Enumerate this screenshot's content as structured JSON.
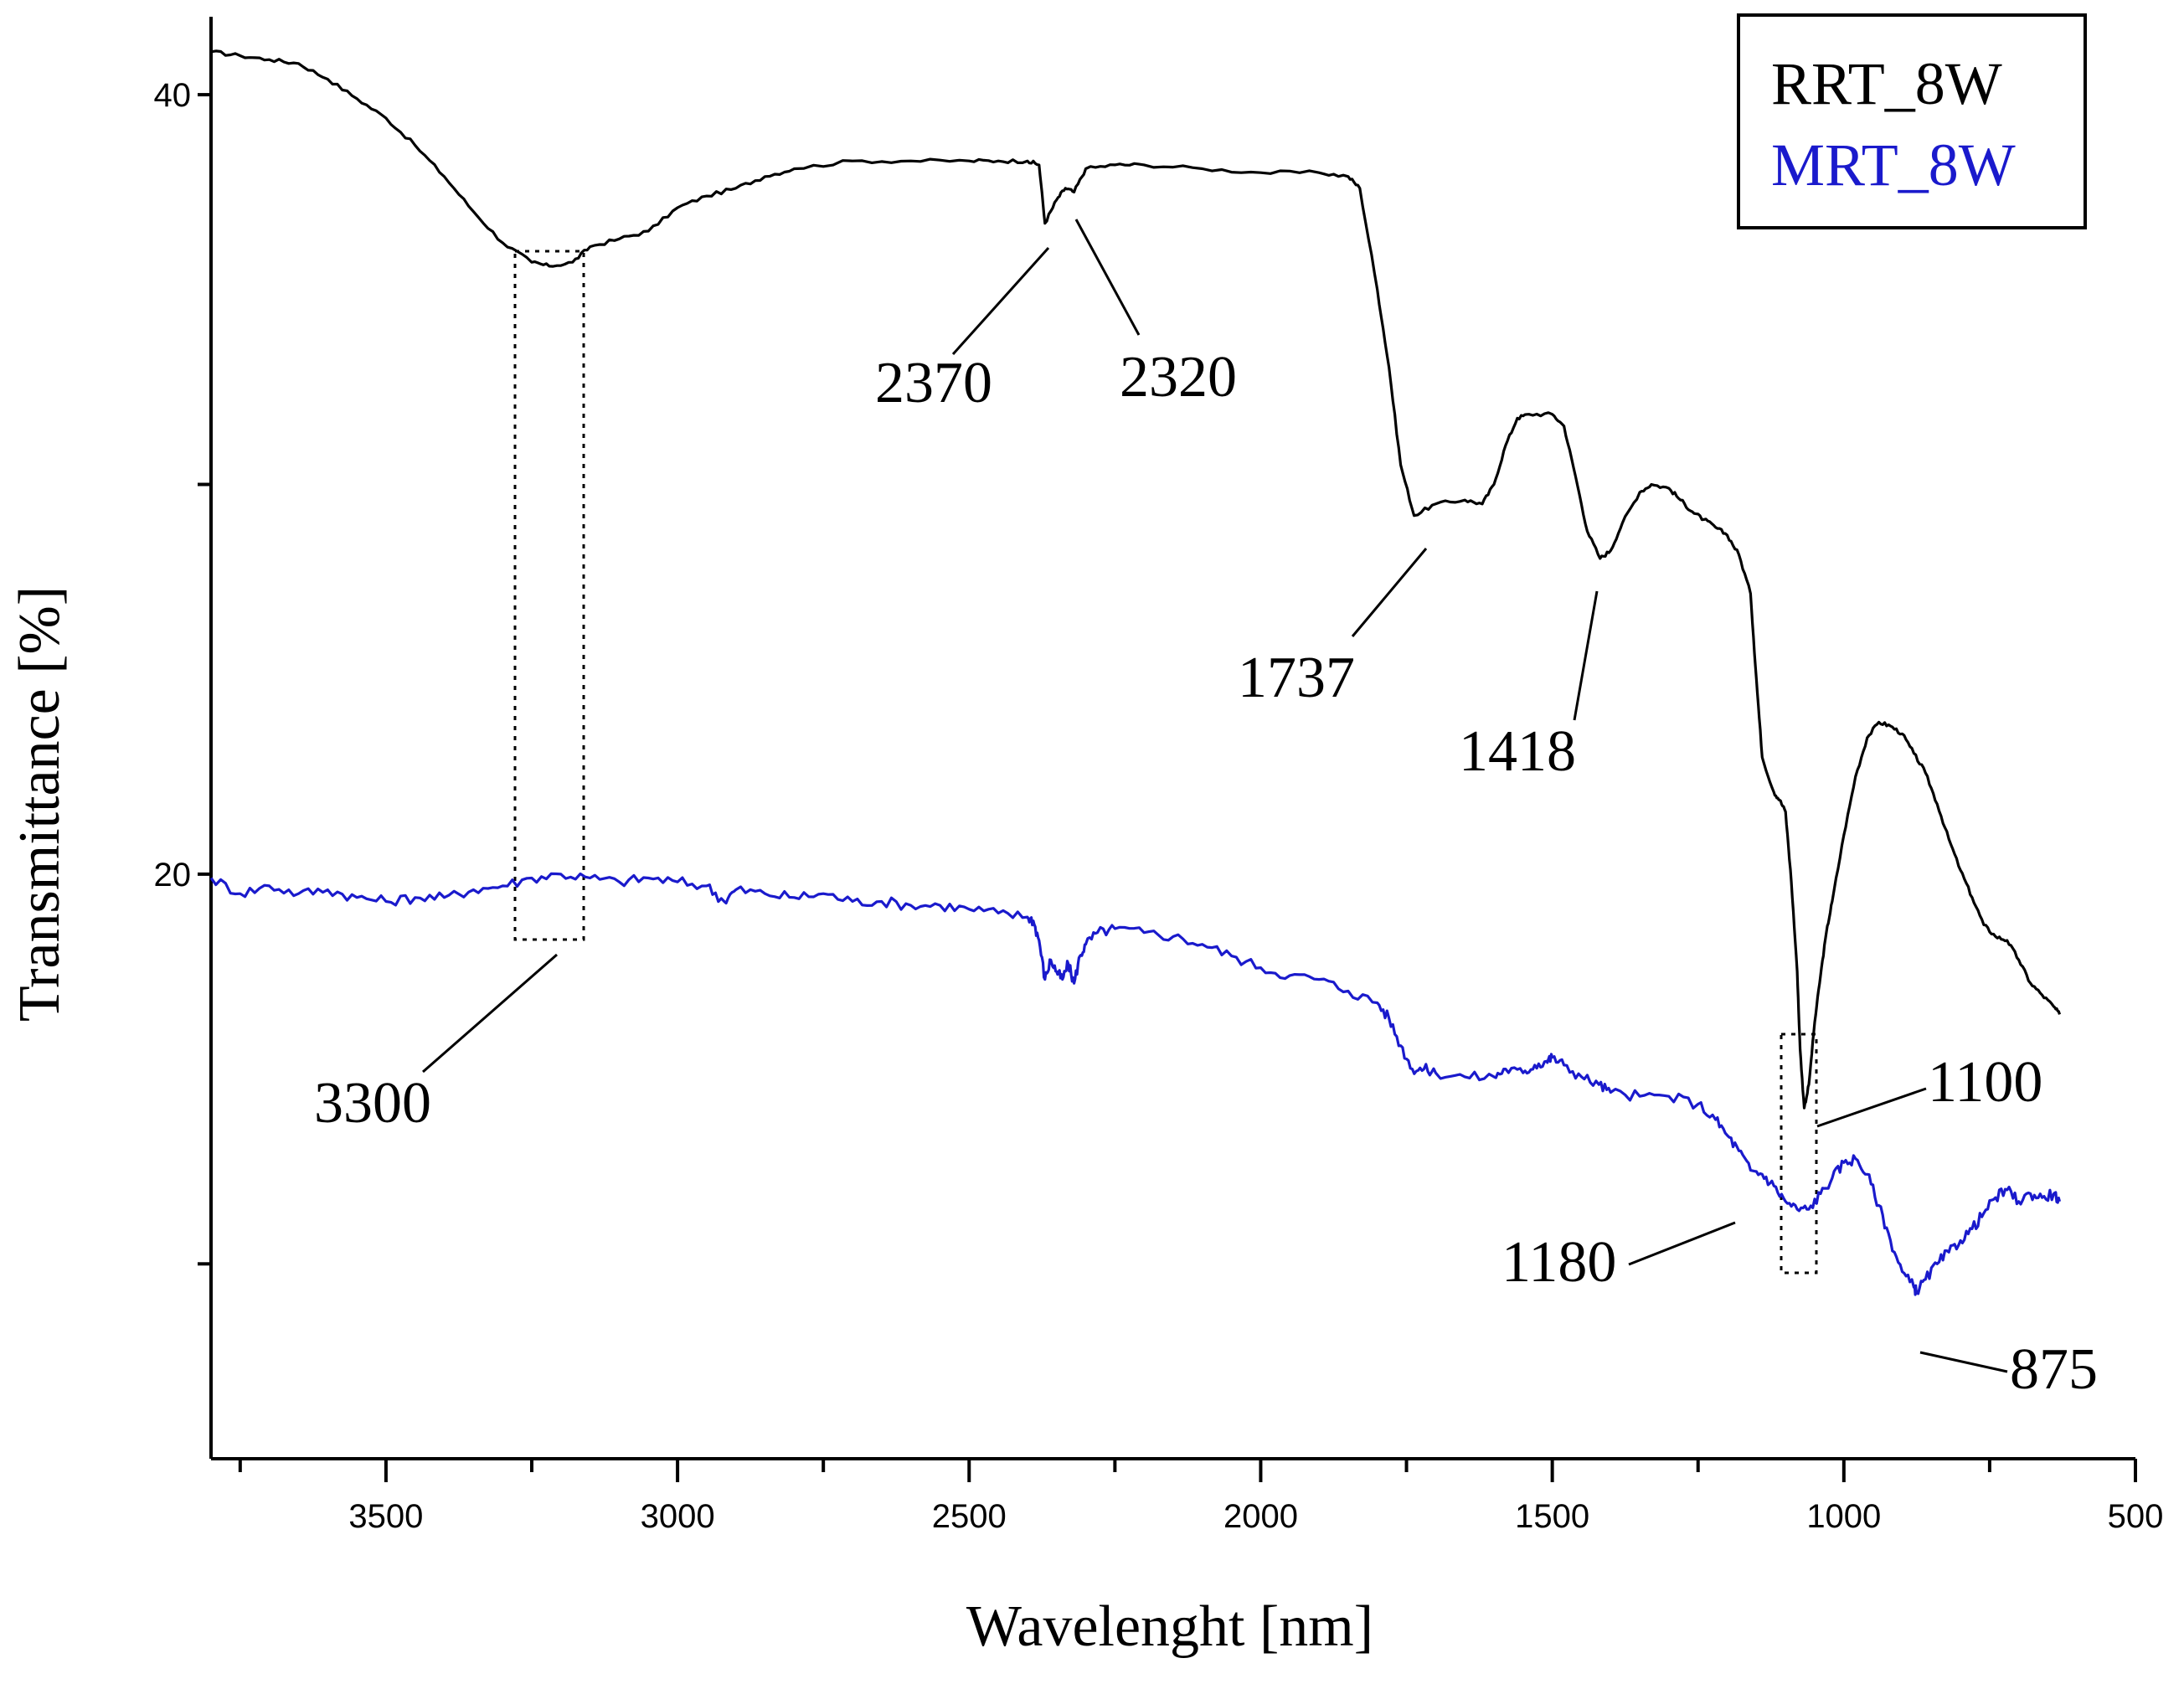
{
  "chart_data": {
    "type": "line",
    "title": "",
    "xlabel": "Wavelenght [nm]",
    "ylabel": "Transmittance [%]",
    "xlim": [
      3800,
      500
    ],
    "ylim": [
      5,
      42
    ],
    "x_ticks": [
      3500,
      3000,
      2500,
      2000,
      1500,
      1000,
      500
    ],
    "y_tick_labels": [
      {
        "value": 40,
        "label": "40"
      },
      {
        "value": 20,
        "label": "20"
      }
    ],
    "y_minor_ticks": [
      30,
      10
    ],
    "legend": {
      "position": "top-right",
      "entries": [
        {
          "label": "RRT_8W",
          "color": "#000000"
        },
        {
          "label": "MRT_8W",
          "color": "#1a1acc"
        }
      ]
    },
    "series": [
      {
        "name": "RRT_8W",
        "color": "#000000",
        "points": [
          [
            3800,
            41.1
          ],
          [
            3750,
            41.0
          ],
          [
            3700,
            40.9
          ],
          [
            3650,
            40.8
          ],
          [
            3600,
            40.4
          ],
          [
            3550,
            39.9
          ],
          [
            3500,
            39.4
          ],
          [
            3450,
            38.7
          ],
          [
            3400,
            37.9
          ],
          [
            3350,
            37.0
          ],
          [
            3300,
            36.2
          ],
          [
            3250,
            35.7
          ],
          [
            3220,
            35.6
          ],
          [
            3180,
            35.7
          ],
          [
            3150,
            36.1
          ],
          [
            3100,
            36.3
          ],
          [
            3050,
            36.5
          ],
          [
            3000,
            37.1
          ],
          [
            2950,
            37.4
          ],
          [
            2900,
            37.6
          ],
          [
            2850,
            37.9
          ],
          [
            2800,
            38.1
          ],
          [
            2700,
            38.3
          ],
          [
            2600,
            38.3
          ],
          [
            2500,
            38.3
          ],
          [
            2450,
            38.3
          ],
          [
            2400,
            38.3
          ],
          [
            2380,
            38.2
          ],
          [
            2370,
            36.7
          ],
          [
            2350,
            37.3
          ],
          [
            2335,
            37.6
          ],
          [
            2320,
            37.5
          ],
          [
            2300,
            38.1
          ],
          [
            2250,
            38.2
          ],
          [
            2200,
            38.2
          ],
          [
            2100,
            38.1
          ],
          [
            2000,
            38.0
          ],
          [
            1900,
            38.0
          ],
          [
            1850,
            37.9
          ],
          [
            1830,
            37.6
          ],
          [
            1800,
            35.0
          ],
          [
            1780,
            33.0
          ],
          [
            1760,
            30.5
          ],
          [
            1737,
            29.2
          ],
          [
            1700,
            29.5
          ],
          [
            1650,
            29.6
          ],
          [
            1620,
            29.5
          ],
          [
            1600,
            30.0
          ],
          [
            1580,
            31.0
          ],
          [
            1560,
            31.7
          ],
          [
            1540,
            31.8
          ],
          [
            1500,
            31.8
          ],
          [
            1480,
            31.5
          ],
          [
            1460,
            30.2
          ],
          [
            1440,
            28.8
          ],
          [
            1418,
            28.1
          ],
          [
            1400,
            28.3
          ],
          [
            1380,
            29.0
          ],
          [
            1350,
            29.8
          ],
          [
            1330,
            30.0
          ],
          [
            1300,
            29.9
          ],
          [
            1280,
            29.6
          ],
          [
            1260,
            29.3
          ],
          [
            1240,
            29.1
          ],
          [
            1220,
            28.9
          ],
          [
            1200,
            28.7
          ],
          [
            1180,
            28.2
          ],
          [
            1160,
            27.2
          ],
          [
            1150,
            25.0
          ],
          [
            1140,
            23.0
          ],
          [
            1120,
            22.1
          ],
          [
            1110,
            21.9
          ],
          [
            1100,
            21.6
          ],
          [
            1090,
            19.8
          ],
          [
            1080,
            17.5
          ],
          [
            1075,
            15.5
          ],
          [
            1068,
            14.0
          ],
          [
            1060,
            14.6
          ],
          [
            1050,
            16.2
          ],
          [
            1040,
            17.4
          ],
          [
            1030,
            18.5
          ],
          [
            1020,
            19.3
          ],
          [
            1000,
            21.0
          ],
          [
            980,
            22.5
          ],
          [
            960,
            23.5
          ],
          [
            940,
            23.9
          ],
          [
            920,
            23.8
          ],
          [
            900,
            23.6
          ],
          [
            880,
            23.1
          ],
          [
            860,
            22.6
          ],
          [
            840,
            21.8
          ],
          [
            820,
            20.9
          ],
          [
            800,
            20.1
          ],
          [
            780,
            19.4
          ],
          [
            760,
            18.7
          ],
          [
            740,
            18.4
          ],
          [
            720,
            18.3
          ],
          [
            700,
            17.8
          ],
          [
            680,
            17.2
          ],
          [
            660,
            16.9
          ],
          [
            640,
            16.6
          ],
          [
            630,
            16.4
          ]
        ]
      },
      {
        "name": "MRT_8W",
        "color": "#1a1acc",
        "points": [
          [
            3800,
            19.9
          ],
          [
            3750,
            19.5
          ],
          [
            3700,
            19.7
          ],
          [
            3650,
            19.5
          ],
          [
            3600,
            19.6
          ],
          [
            3550,
            19.4
          ],
          [
            3500,
            19.3
          ],
          [
            3450,
            19.4
          ],
          [
            3400,
            19.4
          ],
          [
            3350,
            19.6
          ],
          [
            3300,
            19.7
          ],
          [
            3250,
            19.9
          ],
          [
            3200,
            20.0
          ],
          [
            3150,
            19.9
          ],
          [
            3100,
            19.8
          ],
          [
            3050,
            19.9
          ],
          [
            3000,
            19.8
          ],
          [
            2950,
            19.7
          ],
          [
            2920,
            19.3
          ],
          [
            2900,
            19.6
          ],
          [
            2850,
            19.5
          ],
          [
            2800,
            19.4
          ],
          [
            2750,
            19.5
          ],
          [
            2700,
            19.3
          ],
          [
            2650,
            19.3
          ],
          [
            2600,
            19.2
          ],
          [
            2550,
            19.2
          ],
          [
            2500,
            19.1
          ],
          [
            2450,
            19.0
          ],
          [
            2400,
            18.9
          ],
          [
            2390,
            18.8
          ],
          [
            2380,
            18.3
          ],
          [
            2370,
            17.3
          ],
          [
            2360,
            17.8
          ],
          [
            2350,
            17.5
          ],
          [
            2340,
            17.3
          ],
          [
            2330,
            17.7
          ],
          [
            2320,
            17.2
          ],
          [
            2310,
            17.9
          ],
          [
            2300,
            18.2
          ],
          [
            2280,
            18.5
          ],
          [
            2250,
            18.6
          ],
          [
            2200,
            18.5
          ],
          [
            2150,
            18.4
          ],
          [
            2100,
            18.2
          ],
          [
            2050,
            17.9
          ],
          [
            2000,
            17.6
          ],
          [
            1950,
            17.4
          ],
          [
            1900,
            17.3
          ],
          [
            1850,
            17.0
          ],
          [
            1800,
            16.7
          ],
          [
            1780,
            16.3
          ],
          [
            1760,
            15.6
          ],
          [
            1740,
            15.0
          ],
          [
            1720,
            15.0
          ],
          [
            1700,
            14.9
          ],
          [
            1650,
            14.8
          ],
          [
            1600,
            14.8
          ],
          [
            1580,
            15.0
          ],
          [
            1550,
            14.9
          ],
          [
            1530,
            15.1
          ],
          [
            1510,
            15.2
          ],
          [
            1500,
            15.3
          ],
          [
            1480,
            15.1
          ],
          [
            1450,
            14.8
          ],
          [
            1420,
            14.6
          ],
          [
            1400,
            14.4
          ],
          [
            1350,
            14.3
          ],
          [
            1300,
            14.3
          ],
          [
            1250,
            14.1
          ],
          [
            1220,
            13.7
          ],
          [
            1200,
            13.3
          ],
          [
            1180,
            12.9
          ],
          [
            1160,
            12.4
          ],
          [
            1140,
            12.3
          ],
          [
            1120,
            12.0
          ],
          [
            1100,
            11.6
          ],
          [
            1080,
            11.4
          ],
          [
            1060,
            11.4
          ],
          [
            1040,
            11.8
          ],
          [
            1020,
            12.2
          ],
          [
            1000,
            12.6
          ],
          [
            980,
            12.7
          ],
          [
            960,
            12.3
          ],
          [
            940,
            11.5
          ],
          [
            920,
            10.6
          ],
          [
            900,
            9.8
          ],
          [
            880,
            9.4
          ],
          [
            875,
            9.3
          ],
          [
            860,
            9.6
          ],
          [
            840,
            10.0
          ],
          [
            820,
            10.3
          ],
          [
            800,
            10.6
          ],
          [
            780,
            10.9
          ],
          [
            760,
            11.3
          ],
          [
            740,
            11.7
          ],
          [
            720,
            11.9
          ],
          [
            700,
            11.6
          ],
          [
            680,
            11.8
          ],
          [
            660,
            11.7
          ],
          [
            640,
            11.8
          ],
          [
            630,
            11.6
          ]
        ]
      }
    ],
    "annotations": [
      {
        "text": "2370"
      },
      {
        "text": "2320"
      },
      {
        "text": "1737"
      },
      {
        "text": "1418"
      },
      {
        "text": "3300"
      },
      {
        "text": "1100"
      },
      {
        "text": "1180"
      },
      {
        "text": "875"
      }
    ]
  }
}
